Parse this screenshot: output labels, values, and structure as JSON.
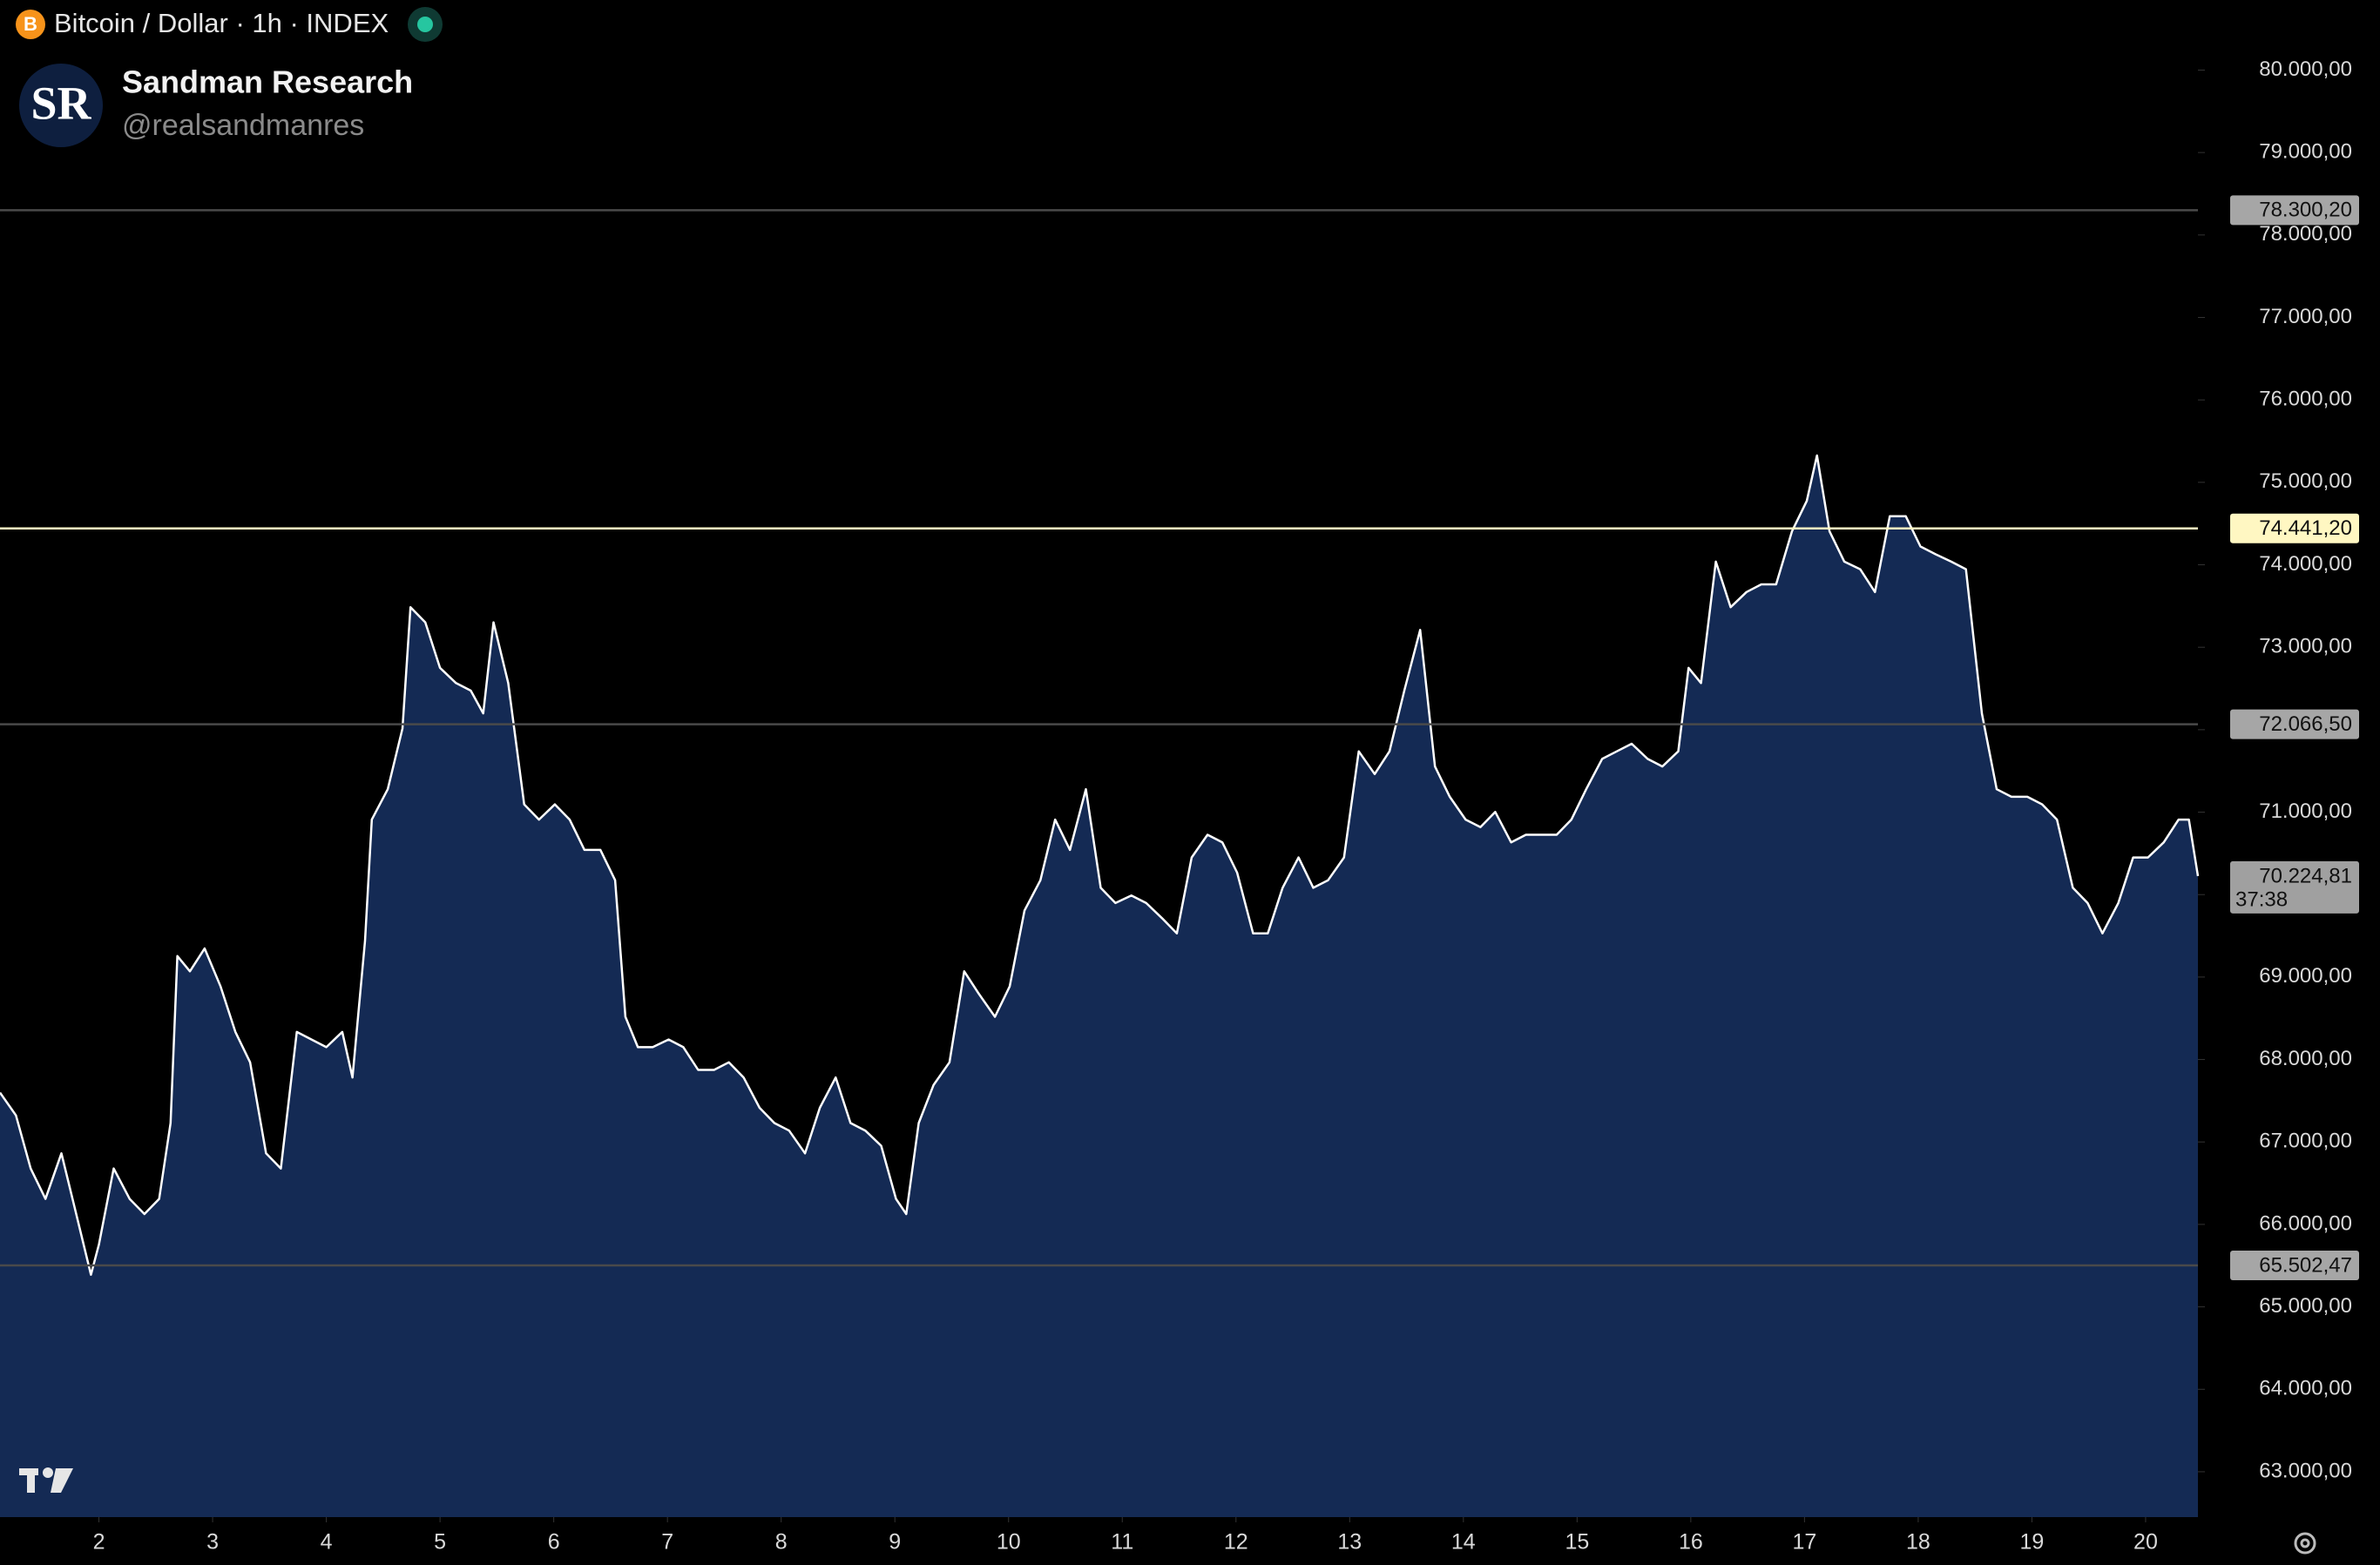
{
  "header": {
    "title": "Bitcoin / Dollar · 1h · INDEX",
    "author": "Sandman Research",
    "handle": "@realsandmanres",
    "logo": "SR"
  },
  "chart_data": {
    "type": "area",
    "x": [
      1.13,
      1.27,
      1.4,
      1.53,
      1.67,
      1.8,
      1.93,
      2.0,
      2.13,
      2.27,
      2.4,
      2.53,
      2.63,
      2.69,
      2.8,
      2.93,
      3.07,
      3.2,
      3.33,
      3.47,
      3.6,
      3.74,
      3.87,
      4.0,
      4.14,
      4.23,
      4.34,
      4.4,
      4.54,
      4.67,
      4.74,
      4.87,
      5.0,
      5.14,
      5.27,
      5.38,
      5.47,
      5.6,
      5.74,
      5.87,
      6.01,
      6.14,
      6.27,
      6.41,
      6.54,
      6.63,
      6.74,
      6.87,
      7.01,
      7.14,
      7.27,
      7.41,
      7.54,
      7.67,
      7.81,
      7.94,
      8.07,
      8.21,
      8.34,
      8.48,
      8.61,
      8.74,
      8.88,
      9.01,
      9.1,
      9.21,
      9.34,
      9.48,
      9.61,
      9.74,
      9.88,
      10.01,
      10.14,
      10.28,
      10.41,
      10.54,
      10.68,
      10.81,
      10.94,
      11.08,
      11.21,
      11.35,
      11.48,
      11.61,
      11.75,
      11.88,
      12.01,
      12.15,
      12.28,
      12.41,
      12.55,
      12.68,
      12.81,
      12.95,
      13.08,
      13.22,
      13.35,
      13.48,
      13.62,
      13.75,
      13.88,
      14.02,
      14.15,
      14.28,
      14.42,
      14.55,
      14.68,
      14.82,
      14.95,
      15.08,
      15.22,
      15.35,
      15.48,
      15.62,
      15.75,
      15.89,
      15.98,
      16.09,
      16.22,
      16.35,
      16.49,
      16.62,
      16.75,
      16.89,
      17.02,
      17.11,
      17.22,
      17.35,
      17.49,
      17.62,
      17.75,
      17.89,
      18.02,
      18.15,
      18.29,
      18.42,
      18.56,
      18.69,
      18.82,
      18.96,
      19.09,
      19.22,
      19.36,
      19.49,
      19.62,
      19.76,
      19.89,
      20.02,
      20.16,
      20.29,
      20.38,
      20.46
    ],
    "values": [
      67598,
      67322,
      66678,
      66310,
      66862,
      66126,
      65390,
      65758,
      66678,
      66310,
      66126,
      66310,
      67230,
      69254,
      69070,
      69346,
      68886,
      68334,
      67966,
      66862,
      66678,
      68334,
      68242,
      68150,
      68334,
      67782,
      69438,
      70910,
      71278,
      72014,
      73486,
      73302,
      72750,
      72566,
      72474,
      72198,
      73302,
      72566,
      71094,
      70910,
      71094,
      70910,
      70542,
      70542,
      70174,
      68518,
      68150,
      68150,
      68242,
      68150,
      67874,
      67874,
      67966,
      67782,
      67414,
      67230,
      67138,
      66862,
      67414,
      67782,
      67230,
      67138,
      66954,
      66310,
      66126,
      67230,
      67690,
      67966,
      69070,
      68794,
      68518,
      68886,
      69806,
      70174,
      70910,
      70542,
      71278,
      70082,
      69898,
      69990,
      69898,
      69714,
      69530,
      70450,
      70726,
      70634,
      70266,
      69530,
      69530,
      70082,
      70450,
      70082,
      70174,
      70450,
      71738,
      71462,
      71738,
      72474,
      73210,
      71554,
      71186,
      70910,
      70818,
      71002,
      70634,
      70726,
      70726,
      70726,
      70910,
      71278,
      71646,
      71738,
      71830,
      71646,
      71554,
      71738,
      72750,
      72566,
      74038,
      73486,
      73670,
      73762,
      73762,
      74406,
      74774,
      75326,
      74406,
      74038,
      73946,
      73670,
      74590,
      74590,
      74222,
      74130,
      74038,
      73946,
      72198,
      71278,
      71186,
      71186,
      71094,
      70910,
      70082,
      69898,
      69530,
      69898,
      70450,
      70450,
      70634,
      70910,
      70910,
      70224.81
    ],
    "color": "#ffffff",
    "fill": "#142a54",
    "xlim": [
      1.13,
      20.46
    ],
    "xticks": [
      2,
      3,
      4,
      5,
      6,
      7,
      8,
      9,
      10,
      11,
      12,
      13,
      14,
      15,
      16,
      17,
      18,
      19,
      20
    ],
    "ylim": [
      62450,
      80850
    ],
    "yticks": [
      {
        "value": 63000,
        "label": "63.000,00"
      },
      {
        "value": 64000,
        "label": "64.000,00"
      },
      {
        "value": 65000,
        "label": "65.000,00"
      },
      {
        "value": 66000,
        "label": "66.000,00"
      },
      {
        "value": 67000,
        "label": "67.000,00"
      },
      {
        "value": 68000,
        "label": "68.000,00"
      },
      {
        "value": 69000,
        "label": "69.000,00"
      },
      {
        "value": 70000,
        "label": "70.000,00"
      },
      {
        "value": 71000,
        "label": "71.000,00"
      },
      {
        "value": 72000,
        "label": "72.000,00"
      },
      {
        "value": 73000,
        "label": "73.000,00"
      },
      {
        "value": 74000,
        "label": "74.000,00"
      },
      {
        "value": 75000,
        "label": "75.000,00"
      },
      {
        "value": 76000,
        "label": "76.000,00"
      },
      {
        "value": 77000,
        "label": "77.000,00"
      },
      {
        "value": 78000,
        "label": "78.000,00"
      },
      {
        "value": 79000,
        "label": "79.000,00"
      },
      {
        "value": 80000,
        "label": "80.000,00"
      }
    ],
    "levels": [
      {
        "value": 78300.2,
        "label": "78.300,20",
        "color": "#4a4a4a",
        "label_color": "#a6a6a6"
      },
      {
        "value": 74441.2,
        "label": "74.441,20",
        "color": "#fff7c2",
        "label_color": "#fff7c2"
      },
      {
        "value": 72066.5,
        "label": "72.066,50",
        "color": "#4a4a4a",
        "label_color": "#a6a6a6"
      },
      {
        "value": 65502.47,
        "label": "65.502,47",
        "color": "#4a4a4a",
        "label_color": "#a6a6a6"
      }
    ],
    "last_price": {
      "value": 70224.81,
      "label": "70.224,81",
      "countdown": "37:38",
      "color": "#a0a0a0"
    }
  }
}
